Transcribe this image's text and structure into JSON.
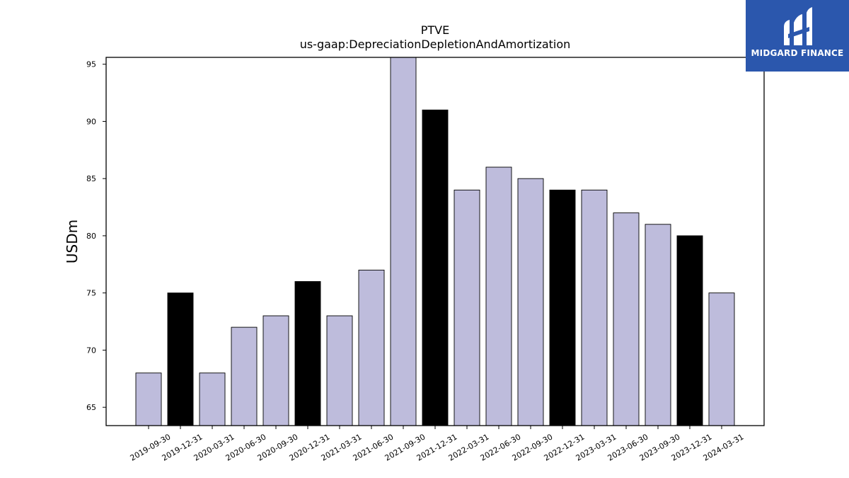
{
  "logo": {
    "text": "MIDGARD FINANCE"
  },
  "colors": {
    "regular": "#bebcdc",
    "highlight": "#000000",
    "edge": "#000000",
    "logo_bg": "#2b57ad"
  },
  "chart_data": {
    "type": "bar",
    "title": "PTVE",
    "subtitle": "us-gaap:DepreciationDepletionAndAmortization",
    "xlabel": "",
    "ylabel": "USDm",
    "ylim": [
      63.4,
      95.6
    ],
    "yticks": [
      65,
      70,
      75,
      80,
      85,
      90,
      95
    ],
    "grid": false,
    "categories": [
      "2019-09-30",
      "2019-12-31",
      "2020-03-31",
      "2020-06-30",
      "2020-09-30",
      "2020-12-31",
      "2021-03-31",
      "2021-06-30",
      "2021-09-30",
      "2021-12-31",
      "2022-03-31",
      "2022-06-30",
      "2022-09-30",
      "2022-12-31",
      "2023-03-31",
      "2023-06-30",
      "2023-09-30",
      "2023-12-31",
      "2024-03-31"
    ],
    "values": [
      68,
      75,
      68,
      72,
      73,
      76,
      73,
      77,
      96,
      91,
      84,
      86,
      85,
      84,
      84,
      82,
      81,
      80,
      75
    ],
    "highlight_categories": [
      "2019-12-31",
      "2020-12-31",
      "2021-12-31",
      "2022-12-31",
      "2023-12-31"
    ]
  }
}
